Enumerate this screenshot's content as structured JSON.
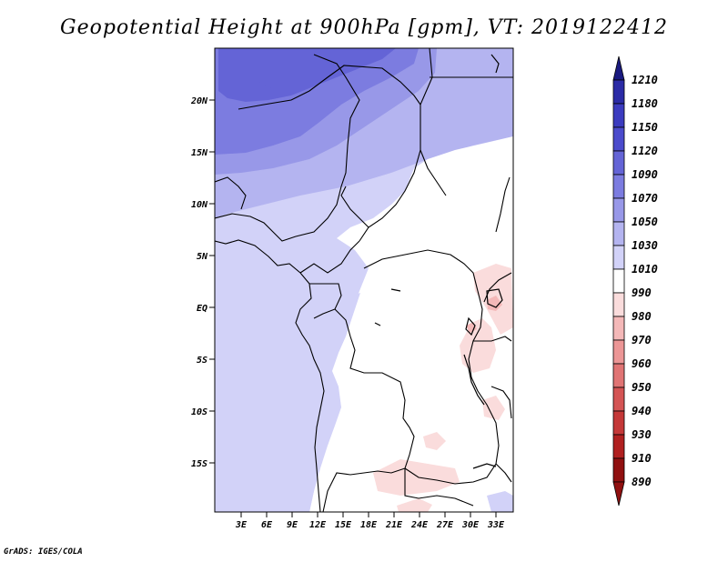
{
  "title": "Geopotential Height at 900hPa [gpm], VT: 2019122412",
  "credit": "GrADS: IGES/COLA",
  "map": {
    "lat_ticks": [
      "20N",
      "15N",
      "10N",
      "5N",
      "EQ",
      "5S",
      "10S",
      "15S"
    ],
    "lon_ticks": [
      "3E",
      "6E",
      "9E",
      "12E",
      "15E",
      "18E",
      "21E",
      "24E",
      "27E",
      "30E",
      "33E"
    ]
  },
  "colorbar": {
    "levels": [
      "1210",
      "1180",
      "1150",
      "1120",
      "1090",
      "1070",
      "1050",
      "1030",
      "1010",
      "990",
      "980",
      "970",
      "960",
      "950",
      "940",
      "930",
      "910",
      "890"
    ],
    "colors": [
      "#1a1a80",
      "#2b2ba6",
      "#3b3bbf",
      "#4b4bcc",
      "#6464d6",
      "#7c7ce0",
      "#9898e8",
      "#b4b4f0",
      "#d2d2f8",
      "#ffffff",
      "#fadcdc",
      "#f4b8b8",
      "#ec9696",
      "#e07474",
      "#d45454",
      "#c43838",
      "#b02020",
      "#901010"
    ]
  }
}
